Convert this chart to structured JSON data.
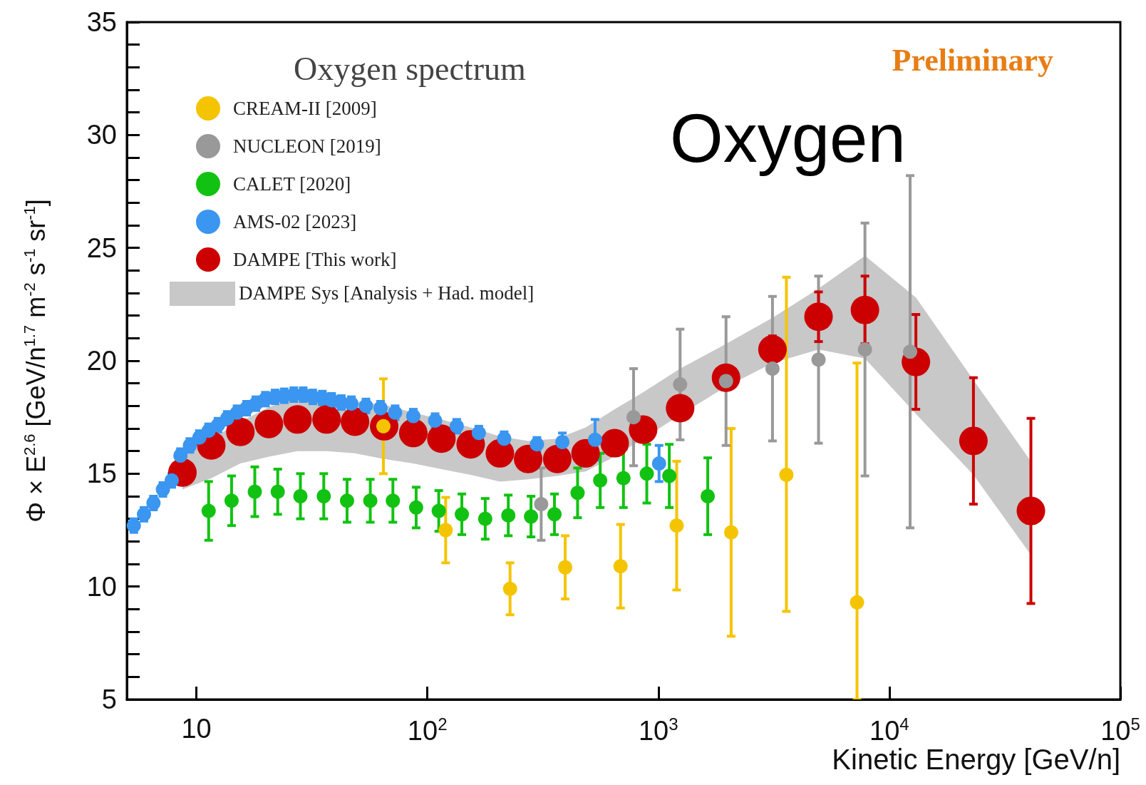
{
  "chart_data": {
    "type": "scatter",
    "title": "Oxygen",
    "legend_title": "Oxygen spectrum",
    "xlabel": "Kinetic Energy [GeV/n]",
    "ylabel": "Φ × E$^{2.6}$ [GeV/n$^{1.7}$ m$^{-2}$ s$^{-1}$ sr$^{-1}$]",
    "annotations": [
      "Preliminary",
      "DAMPE Sys [Analysis + Had. model]"
    ],
    "log": "x",
    "xlim": [
      5,
      100000
    ],
    "xticks": [
      10,
      {
        "value": 100,
        "label": "10$^{2}$"
      },
      {
        "value": 1000,
        "label": "10$^{3}$"
      },
      {
        "value": 10000,
        "label": "10$^{4}$"
      },
      {
        "value": 100000,
        "label": "10$^{5}$"
      }
    ],
    "ylim": [
      5,
      35
    ],
    "yticks": [
      5,
      10,
      15,
      20,
      25,
      30,
      35
    ],
    "grid": false,
    "legend": "top left",
    "marker": "circle",
    "series": [
      {
        "name": "CREAM-II [2009]",
        "color": "#f5c400",
        "x": [
          64.5,
          120,
          228,
          395,
          686,
          1200,
          2066,
          3583,
          7244
        ],
        "values": [
          17.1,
          12.5,
          9.9,
          10.85,
          10.9,
          12.7,
          12.4,
          14.95,
          9.3
        ],
        "errors": [
          2.1,
          1.45,
          1.15,
          1.4,
          1.85,
          2.85,
          4.6,
          [
            8.9,
            23.7
          ],
          [
            5,
            19.9
          ]
        ]
      },
      {
        "name": "NUCLEON [2019]",
        "color": "#999999",
        "x": [
          311,
          781,
          1242,
          1963,
          3119,
          4936,
          7840,
          12300
        ],
        "values": [
          13.65,
          17.5,
          18.95,
          19.1,
          19.65,
          20.05,
          20.5,
          20.4
        ],
        "errors": [
          1.6,
          2.15,
          2.45,
          2.85,
          3.2,
          3.7,
          5.6,
          7.8
        ]
      },
      {
        "name": "CALET [2020]",
        "color": "#12c212",
        "x": [
          11.3,
          14.2,
          17.9,
          22.5,
          28.2,
          35.6,
          44.9,
          56.6,
          70.9,
          89.4,
          112,
          141,
          178,
          224,
          281,
          355,
          447,
          560,
          706,
          891,
          1115,
          1636
        ],
        "values": [
          13.35,
          13.8,
          14.2,
          14.2,
          14.0,
          14.0,
          13.8,
          13.8,
          13.8,
          13.5,
          13.35,
          13.2,
          13.0,
          13.15,
          13.1,
          13.2,
          14.15,
          14.7,
          14.8,
          15.0,
          14.9,
          14.0
        ],
        "errors": [
          1.3,
          1.1,
          1.1,
          1.0,
          1.0,
          1.0,
          0.95,
          0.95,
          0.95,
          0.9,
          0.9,
          0.9,
          0.9,
          0.9,
          0.9,
          0.9,
          1.1,
          1.2,
          1.3,
          1.3,
          1.4,
          1.7
        ]
      },
      {
        "name": "AMS-02 [2023]",
        "color": "#3a96f0",
        "x": [
          5.36,
          5.93,
          6.52,
          7.16,
          7.82,
          8.53,
          9.37,
          10.3,
          11.3,
          12.4,
          13.6,
          15.0,
          16.5,
          18.1,
          19.9,
          21.9,
          24.0,
          26.4,
          29.0,
          31.9,
          35.1,
          38.5,
          42.4,
          46.9,
          54.2,
          62.7,
          72.5,
          86.9,
          108,
          134,
          167,
          215,
          298,
          384,
          532,
          1007
        ],
        "values": [
          12.7,
          13.2,
          13.7,
          14.3,
          14.7,
          15.8,
          16.25,
          16.6,
          16.9,
          17.15,
          17.45,
          17.7,
          17.9,
          18.1,
          18.3,
          18.4,
          18.45,
          18.5,
          18.5,
          18.4,
          18.35,
          18.25,
          18.15,
          18.1,
          18.0,
          17.9,
          17.7,
          17.55,
          17.35,
          17.1,
          16.8,
          16.55,
          16.3,
          16.4,
          16.5,
          15.45
        ],
        "errors": [
          0.3,
          0.3,
          0.3,
          0.3,
          0.3,
          0.3,
          0.3,
          0.3,
          0.3,
          0.3,
          0.3,
          0.3,
          0.3,
          0.3,
          0.3,
          0.3,
          0.3,
          0.3,
          0.3,
          0.3,
          0.3,
          0.3,
          0.3,
          0.3,
          0.3,
          0.3,
          0.3,
          0.3,
          0.3,
          0.3,
          0.3,
          0.3,
          0.3,
          0.4,
          0.9,
          0.8
        ]
      },
      {
        "name": "DAMPE [This work]",
        "color": "#cc0000",
        "x": [
          8.7,
          11.6,
          15.5,
          20.6,
          27.4,
          36.6,
          48.6,
          65,
          86.9,
          115,
          154,
          206,
          273,
          365,
          484,
          647,
          859,
          1242,
          1963,
          3119,
          4936,
          7840,
          13030,
          23120,
          41000
        ],
        "values": [
          15.05,
          16.25,
          16.85,
          17.2,
          17.4,
          17.4,
          17.3,
          17.1,
          16.8,
          16.55,
          16.3,
          15.9,
          15.65,
          15.65,
          15.9,
          16.35,
          16.95,
          17.9,
          19.25,
          20.5,
          21.95,
          22.25,
          19.95,
          16.45,
          13.35
        ],
        "errors": [
          null,
          null,
          null,
          null,
          null,
          null,
          null,
          null,
          null,
          null,
          null,
          null,
          null,
          null,
          null,
          null,
          null,
          null,
          0.5,
          0.6,
          1.1,
          1.5,
          2.1,
          2.8,
          4.1
        ],
        "lower": [
          14.3,
          14.8,
          15.45,
          15.75,
          16.0,
          16.0,
          15.9,
          15.65,
          15.45,
          15.2,
          14.95,
          14.65,
          14.75,
          14.9,
          15.1,
          15.75,
          16.55,
          17.6,
          18.85,
          19.9,
          20.5,
          20.1,
          17.65,
          14.95,
          11.4
        ],
        "upper": [
          15.75,
          16.55,
          17.3,
          17.95,
          18.35,
          18.35,
          18.2,
          18.05,
          17.7,
          17.4,
          17.05,
          16.65,
          16.45,
          16.55,
          17.05,
          17.85,
          18.6,
          19.65,
          20.75,
          21.9,
          23.2,
          24.65,
          22.8,
          19.15,
          15.55
        ]
      }
    ]
  }
}
